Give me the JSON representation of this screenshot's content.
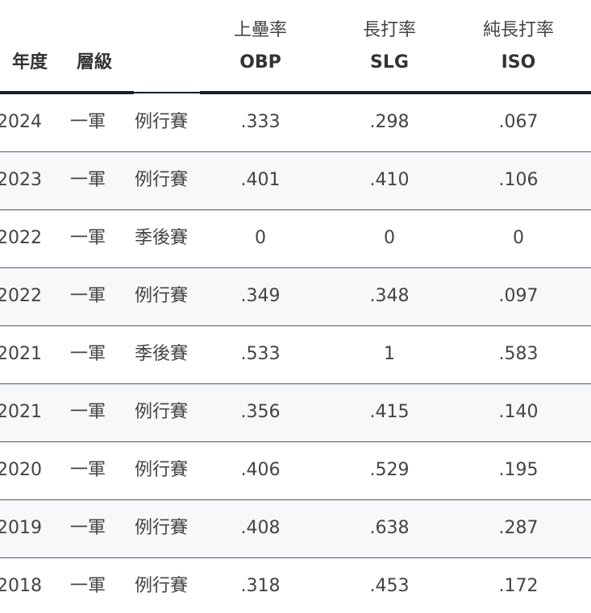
{
  "table": {
    "columns": [
      {
        "zh": "年度"
      },
      {
        "zh": "層級"
      },
      {
        "zh": "上壘率",
        "en": "OBP"
      },
      {
        "zh": "長打率",
        "en": "SLG"
      },
      {
        "zh": "純長打率",
        "en": "ISO"
      }
    ],
    "rows": [
      [
        "2024",
        "一軍",
        "例行賽",
        ".333",
        ".298",
        ".067"
      ],
      [
        "2023",
        "一軍",
        "例行賽",
        ".401",
        ".410",
        ".106"
      ],
      [
        "2022",
        "一軍",
        "季後賽",
        "0",
        "0",
        "0"
      ],
      [
        "2022",
        "一軍",
        "例行賽",
        ".349",
        ".348",
        ".097"
      ],
      [
        "2021",
        "一軍",
        "季後賽",
        ".533",
        "1",
        ".583"
      ],
      [
        "2021",
        "一軍",
        "例行賽",
        ".356",
        ".415",
        ".140"
      ],
      [
        "2020",
        "一軍",
        "例行賽",
        ".406",
        ".529",
        ".195"
      ],
      [
        "2019",
        "一軍",
        "例行賽",
        ".408",
        ".638",
        ".287"
      ],
      [
        "2018",
        "一軍",
        "例行賽",
        ".318",
        ".453",
        ".172"
      ]
    ]
  }
}
